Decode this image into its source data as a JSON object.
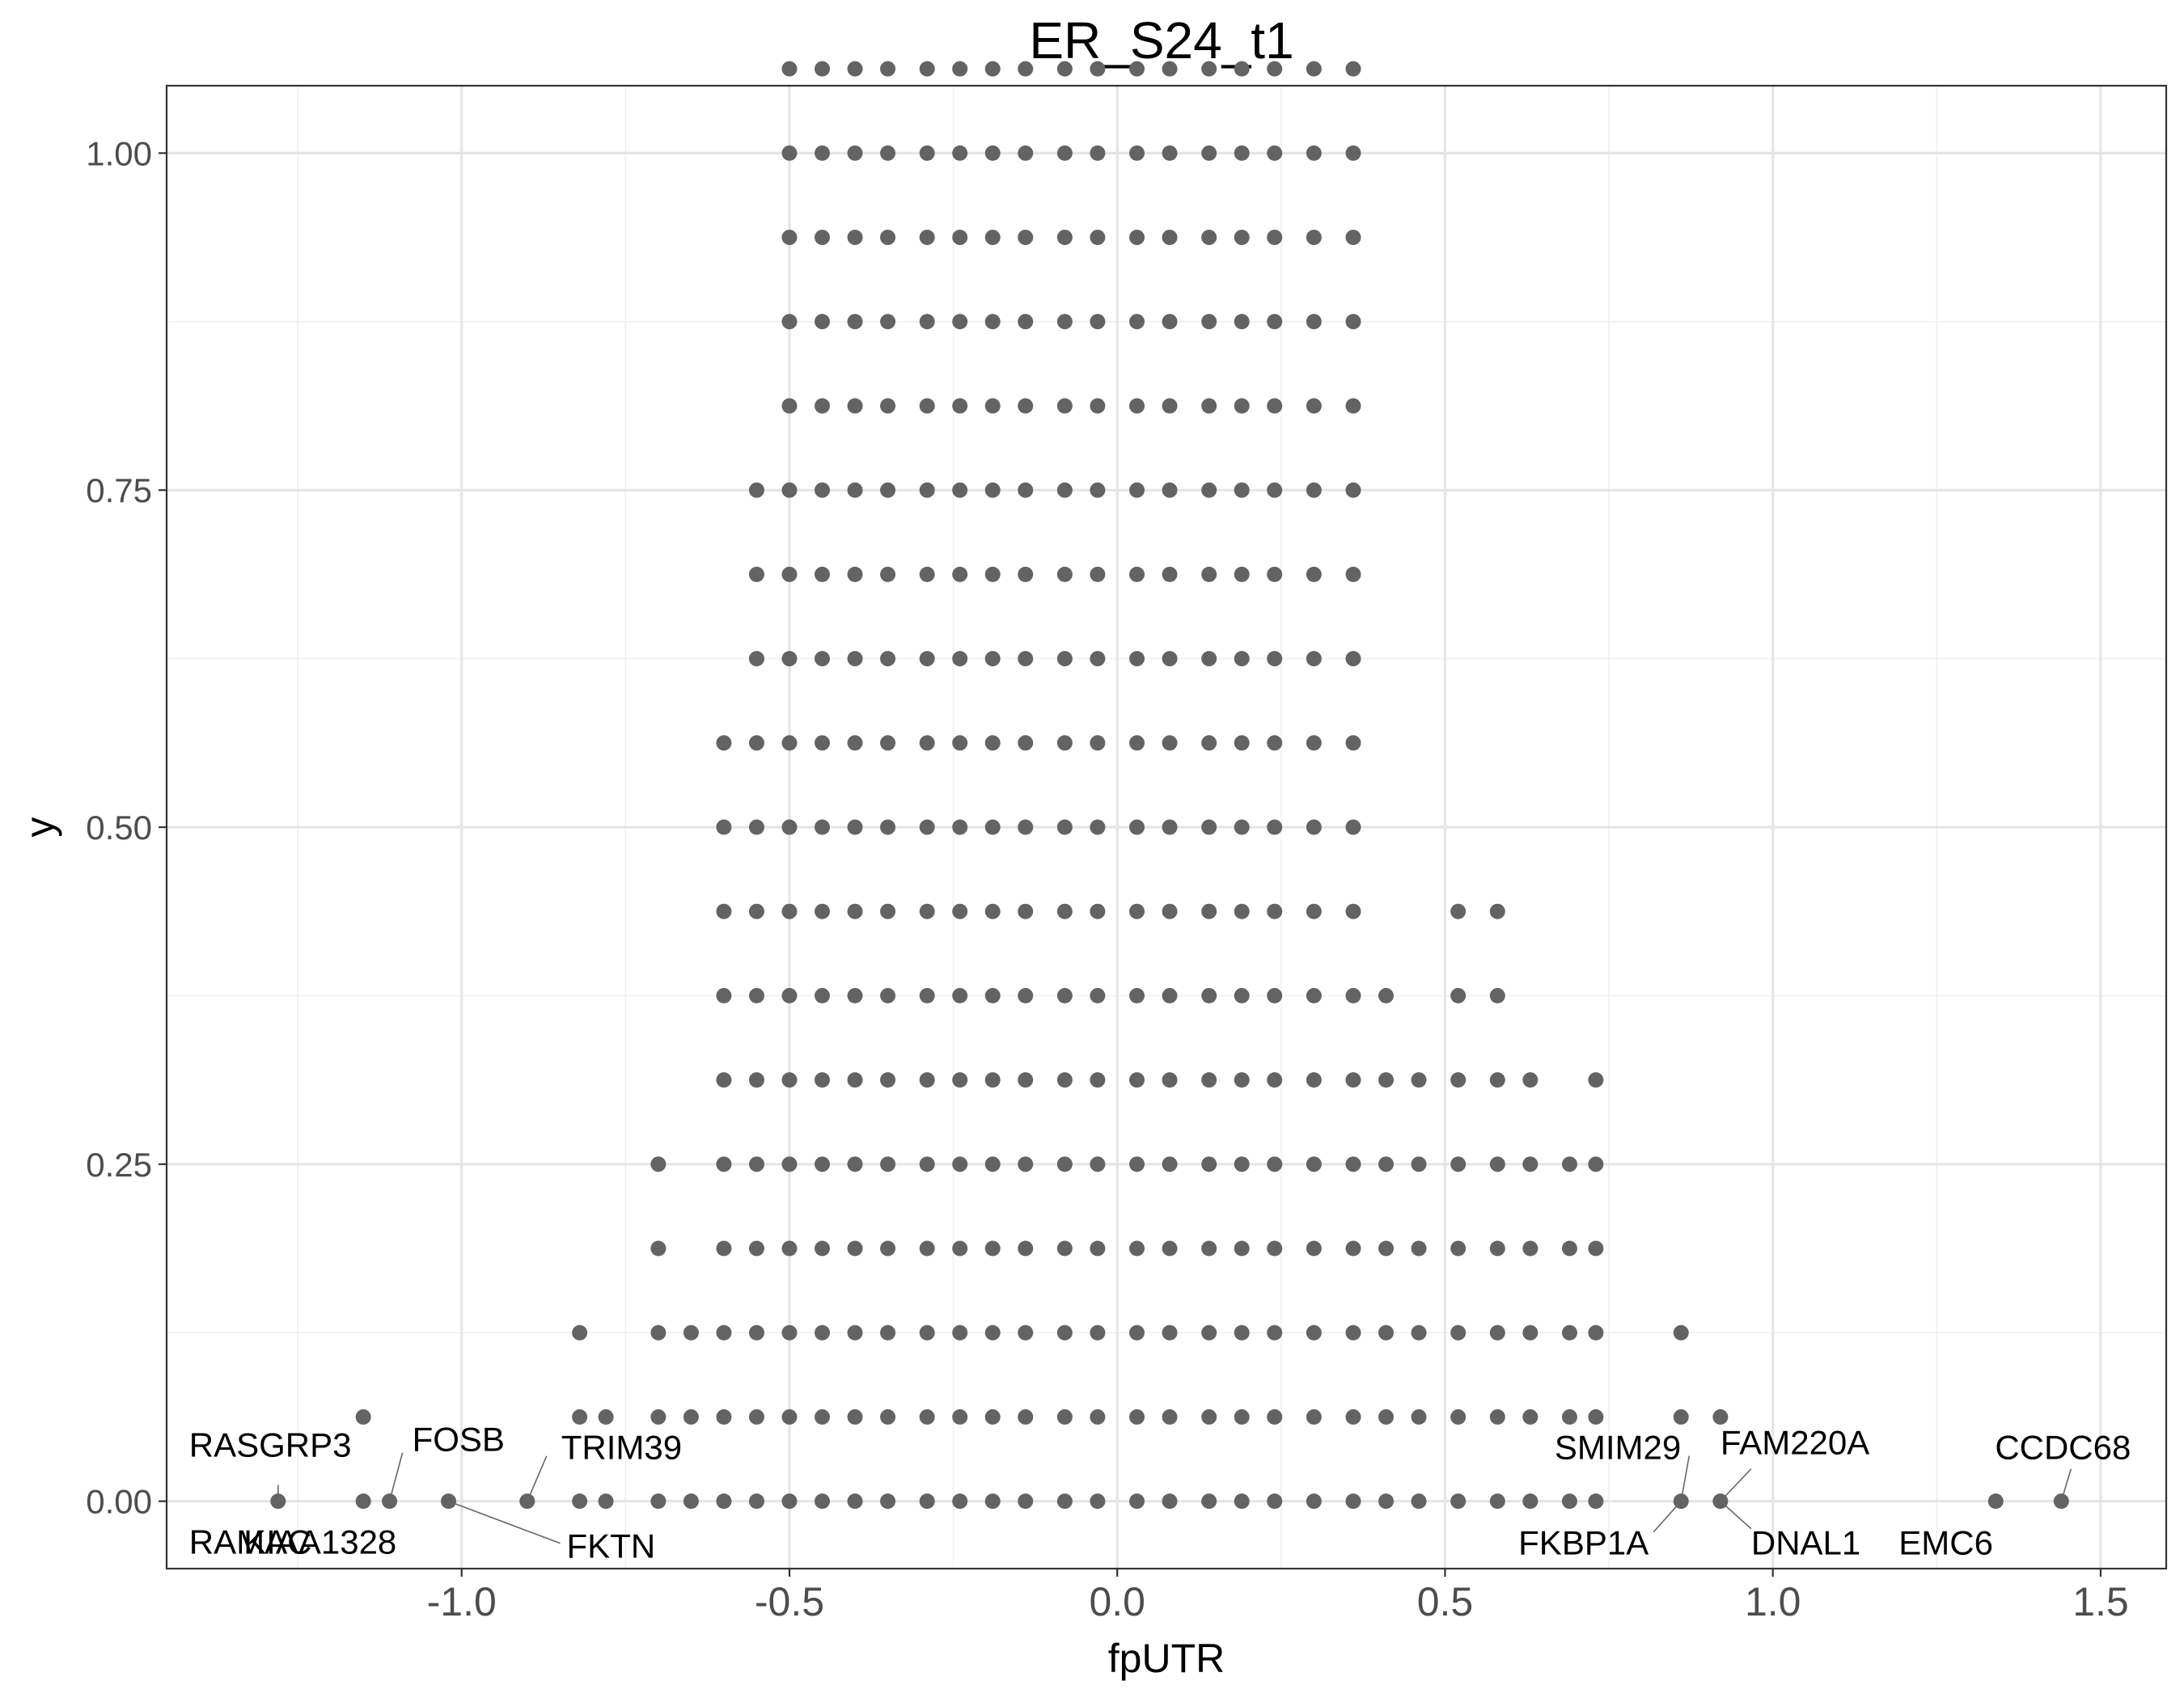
{
  "chart_data": {
    "type": "scatter",
    "title": "ER_S24_t1",
    "xlabel": "fpUTR",
    "ylabel": "y",
    "xlim": [
      -1.45,
      1.6
    ],
    "ylim": [
      -0.05,
      1.05
    ],
    "x_ticks": [
      -1.0,
      -0.5,
      0.0,
      0.5,
      1.0,
      1.5
    ],
    "x_tick_labels": [
      "-1.0",
      "-0.5",
      "0.0",
      "0.5",
      "1.0",
      "1.5"
    ],
    "y_ticks": [
      0.0,
      0.25,
      0.5,
      0.75,
      1.0
    ],
    "y_tick_labels": [
      "0.00",
      "0.25",
      "0.50",
      "0.75",
      "1.00"
    ],
    "grid": true,
    "point_color": "#636363",
    "dot_columns": {
      "x": [
        -1.28,
        -1.15,
        -1.11,
        -1.02,
        -0.9,
        -0.82,
        -0.78,
        -0.7,
        -0.65,
        -0.6,
        -0.55,
        -0.5,
        -0.45,
        -0.4,
        -0.35,
        -0.29,
        -0.24,
        -0.19,
        -0.14,
        -0.08,
        -0.03,
        0.03,
        0.08,
        0.14,
        0.19,
        0.24,
        0.3,
        0.36,
        0.41,
        0.46,
        0.52,
        0.58,
        0.63,
        0.69,
        0.73,
        0.86,
        0.92,
        1.34,
        1.44
      ],
      "counts": [
        1,
        2,
        1,
        1,
        1,
        3,
        2,
        5,
        3,
        10,
        13,
        18,
        18,
        18,
        18,
        18,
        18,
        18,
        18,
        18,
        18,
        18,
        18,
        18,
        18,
        18,
        18,
        18,
        7,
        6,
        8,
        8,
        6,
        5,
        6,
        3,
        2,
        1,
        1
      ],
      "y_step": 0.0625
    },
    "annotations": [
      {
        "label": "RASGRP3",
        "x": -1.28,
        "y": 0.0
      },
      {
        "label": "RAMAC",
        "x": -1.28,
        "y": 0.0
      },
      {
        "label": "KIAA1328",
        "x": -1.15,
        "y": 0.0
      },
      {
        "label": "FOSB",
        "x": -1.11,
        "y": 0.0
      },
      {
        "label": "FKTN",
        "x": -1.02,
        "y": 0.0
      },
      {
        "label": "TRIM39",
        "x": -0.9,
        "y": 0.0
      },
      {
        "label": "SMIM29",
        "x": 0.86,
        "y": 0.0
      },
      {
        "label": "FKBP1A",
        "x": 0.86,
        "y": 0.0
      },
      {
        "label": "FAM220A",
        "x": 0.92,
        "y": 0.0
      },
      {
        "label": "DNAL1",
        "x": 0.92,
        "y": 0.0
      },
      {
        "label": "EMC6",
        "x": 1.34,
        "y": 0.0
      },
      {
        "label": "CCDC68",
        "x": 1.44,
        "y": 0.0
      }
    ]
  }
}
